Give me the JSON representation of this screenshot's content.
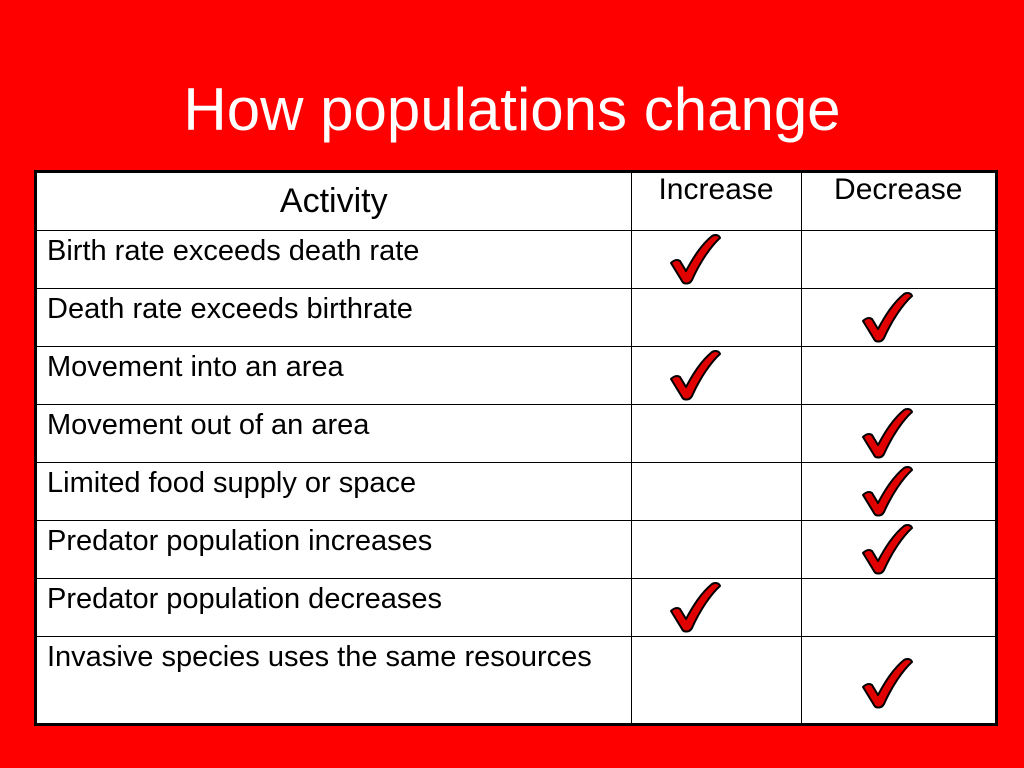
{
  "slide": {
    "title": "How populations change"
  },
  "table": {
    "headers": {
      "activity": "Activity",
      "increase": "Increase",
      "decrease": "Decrease"
    },
    "rows": [
      {
        "activity": "Birth rate exceeds death rate",
        "result": "increase"
      },
      {
        "activity": "Death rate exceeds birthrate",
        "result": "decrease"
      },
      {
        "activity": "Movement into an area",
        "result": "increase"
      },
      {
        "activity": "Movement out of an area",
        "result": "decrease"
      },
      {
        "activity": "Limited food supply or space",
        "result": "decrease"
      },
      {
        "activity": "Predator population increases",
        "result": "decrease"
      },
      {
        "activity": "Predator population decreases",
        "result": "increase"
      },
      {
        "activity": "Invasive species uses the same resources",
        "result": "decrease"
      }
    ]
  },
  "colors": {
    "background": "#ff0000",
    "title_text": "#ffffff",
    "check_fill": "#e00000",
    "check_outline": "#000000"
  },
  "icons": {
    "mark": "check-icon"
  }
}
